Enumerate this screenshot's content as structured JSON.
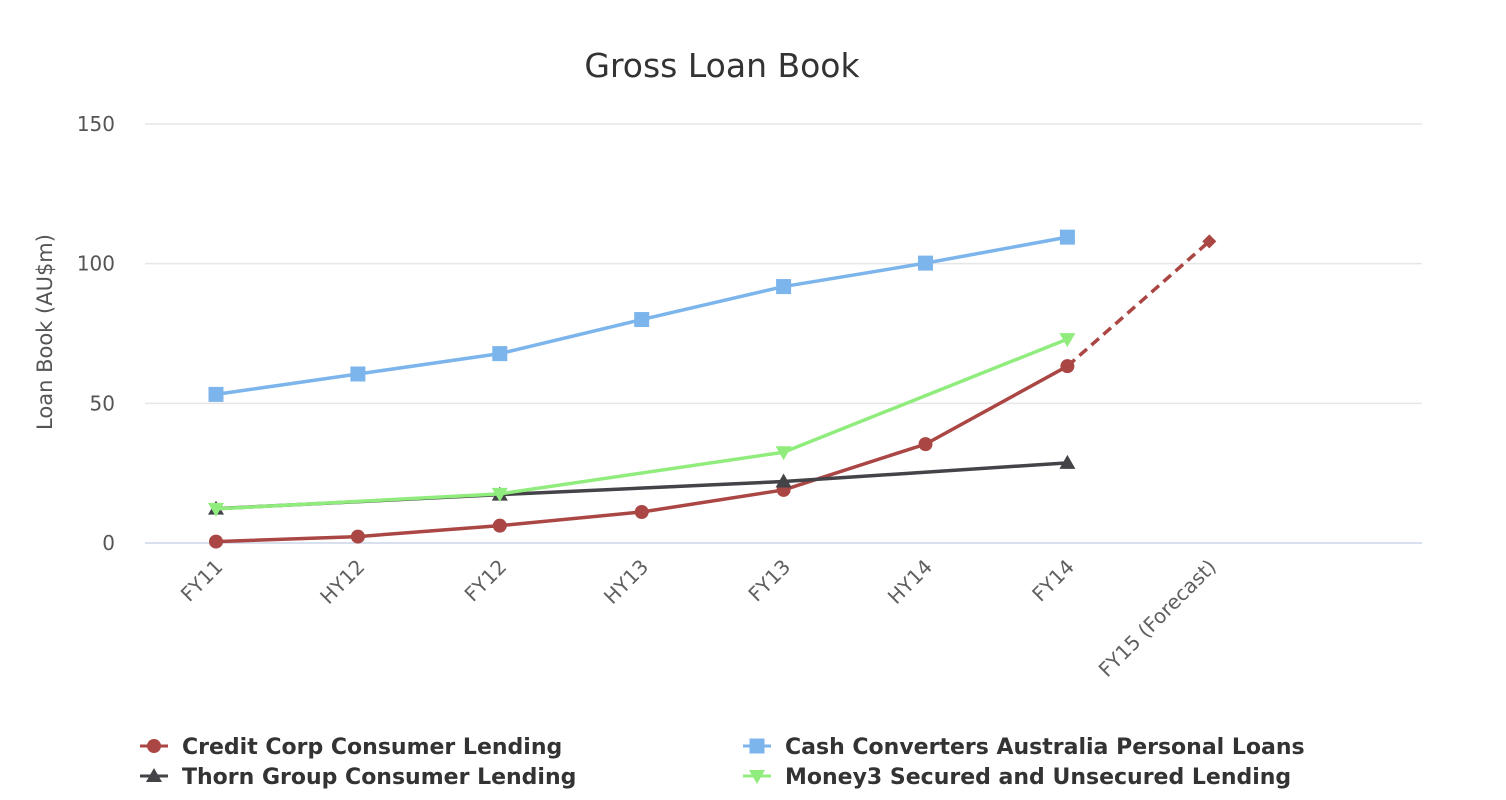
{
  "chart_data": {
    "type": "line",
    "title": "Gross Loan Book",
    "xlabel": "",
    "ylabel": "Loan Book (AU$m)",
    "categories": [
      "FY11",
      "HY12",
      "FY12",
      "HY13",
      "FY13",
      "HY14",
      "FY14",
      "FY15 (Forecast)"
    ],
    "ylim": [
      0,
      150
    ],
    "yticks": [
      0,
      50,
      100,
      150
    ],
    "grid": true,
    "legend_position": "bottom",
    "series": [
      {
        "name": "Credit Corp Consumer Lending",
        "color": "#aa4643",
        "marker": "circle",
        "values": [
          0.5,
          2.3,
          6.2,
          11.1,
          19.0,
          35.4,
          63.3,
          108.0
        ],
        "dashed_from_index": 6
      },
      {
        "name": "Cash Converters Australia Personal Loans",
        "color": "#7cb5ec",
        "marker": "square",
        "values": [
          53.2,
          60.5,
          67.8,
          80.0,
          91.8,
          100.2,
          109.5,
          null
        ]
      },
      {
        "name": "Thorn Group Consumer Lending",
        "color": "#434348",
        "marker": "triangle",
        "values": [
          12.3,
          null,
          17.3,
          null,
          22.0,
          null,
          28.7,
          null
        ]
      },
      {
        "name": "Money3 Secured and Unsecured Lending",
        "color": "#90ed7d",
        "marker": "triangle-down",
        "values": [
          12.2,
          null,
          17.6,
          null,
          32.5,
          null,
          73.0,
          null
        ]
      }
    ]
  }
}
